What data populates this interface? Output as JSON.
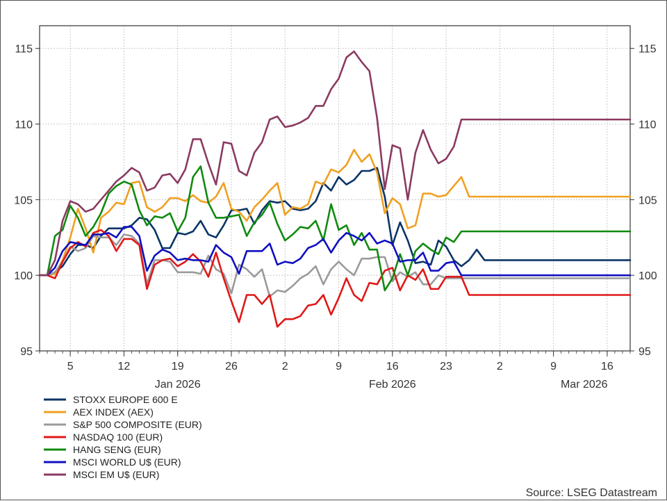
{
  "chart_data": {
    "type": "line",
    "title": "",
    "xlabel": "",
    "ylabel": "",
    "ylim": [
      95,
      116.5
    ],
    "xlim": [
      "2026-01-01",
      "2026-03-19"
    ],
    "y_ticks": [
      95,
      100,
      105,
      110,
      115
    ],
    "y_axis_sides": [
      "left",
      "right"
    ],
    "x_ticks": [
      {
        "date": "2026-01-05",
        "label": "5"
      },
      {
        "date": "2026-01-12",
        "label": "12"
      },
      {
        "date": "2026-01-19",
        "label": "19"
      },
      {
        "date": "2026-01-26",
        "label": "26"
      },
      {
        "date": "2026-02-02",
        "label": "2"
      },
      {
        "date": "2026-02-09",
        "label": "9"
      },
      {
        "date": "2026-02-16",
        "label": "16"
      },
      {
        "date": "2026-02-23",
        "label": "23"
      },
      {
        "date": "2026-03-02",
        "label": "2"
      },
      {
        "date": "2026-03-09",
        "label": "9"
      },
      {
        "date": "2026-03-16",
        "label": "16"
      }
    ],
    "month_labels": [
      {
        "date": "2026-01-19",
        "label": "Jan 2026"
      },
      {
        "date": "2026-02-16",
        "label": "Feb 2026"
      },
      {
        "date": "2026-03-13",
        "label": "Mar 2026"
      }
    ],
    "grid": true,
    "legend_position": "bottom-left",
    "source": "Source: LSEG Datastream",
    "x": [
      "2026-01-01",
      "2026-01-02",
      "2026-01-03",
      "2026-01-04",
      "2026-01-05",
      "2026-01-06",
      "2026-01-07",
      "2026-01-08",
      "2026-01-09",
      "2026-01-10",
      "2026-01-11",
      "2026-01-12",
      "2026-01-13",
      "2026-01-14",
      "2026-01-15",
      "2026-01-16",
      "2026-01-17",
      "2026-01-18",
      "2026-01-19",
      "2026-01-20",
      "2026-01-21",
      "2026-01-22",
      "2026-01-23",
      "2026-01-24",
      "2026-01-25",
      "2026-01-26",
      "2026-01-27",
      "2026-01-28",
      "2026-01-29",
      "2026-01-30",
      "2026-01-31",
      "2026-02-01",
      "2026-02-02",
      "2026-02-03",
      "2026-02-04",
      "2026-02-05",
      "2026-02-06",
      "2026-02-07",
      "2026-02-08",
      "2026-02-09",
      "2026-02-10",
      "2026-02-11",
      "2026-02-12",
      "2026-02-13",
      "2026-02-14",
      "2026-02-15",
      "2026-02-16",
      "2026-02-17",
      "2026-02-18",
      "2026-02-19",
      "2026-02-20",
      "2026-02-21",
      "2026-02-22",
      "2026-02-23",
      "2026-02-24",
      "2026-02-25",
      "2026-02-26",
      "2026-02-27",
      "2026-02-28",
      "2026-03-01",
      "2026-03-02",
      "2026-03-03",
      "2026-03-04",
      "2026-03-05",
      "2026-03-06",
      "2026-03-07",
      "2026-03-08",
      "2026-03-09",
      "2026-03-10",
      "2026-03-11",
      "2026-03-12",
      "2026-03-13",
      "2026-03-14",
      "2026-03-15",
      "2026-03-16",
      "2026-03-17",
      "2026-03-18",
      "2026-03-19"
    ],
    "series": [
      {
        "name": "STOXX EUROPE 600 E",
        "color": "#0a3466",
        "values": [
          100,
          100,
          100.2,
          100.6,
          101.4,
          102.0,
          102.0,
          101.8,
          102.6,
          103.1,
          103.1,
          103.1,
          103.3,
          103.8,
          103.7,
          103.0,
          101.8,
          101.8,
          102.8,
          102.7,
          102.9,
          103.6,
          102.7,
          102.5,
          103.3,
          104.3,
          104.3,
          104.4,
          103.4,
          104.3,
          104.9,
          104.8,
          104.9,
          104.4,
          104.3,
          104.4,
          104.9,
          106.1,
          105.6,
          106.5,
          106.0,
          106.3,
          106.9,
          106.9,
          107.1,
          105.2,
          102.0,
          103.5,
          102.3,
          100.8,
          100.9,
          100.7,
          102.3,
          101.9,
          101.0,
          100.6,
          101.0,
          101.7,
          101.0,
          101.0,
          101.0,
          101.0,
          101.0,
          101.0,
          101.0,
          101.0,
          101.0,
          101.0,
          101.0,
          101.0,
          101.0,
          101.0,
          101.0,
          101.0,
          101.0,
          101.0,
          101.0,
          101.0
        ]
      },
      {
        "name": "AEX INDEX (AEX)",
        "color": "#f0a020",
        "values": [
          100,
          100,
          100.1,
          101.0,
          102.5,
          104.4,
          103.1,
          101.5,
          103.8,
          104.2,
          104.8,
          104.7,
          106.1,
          106.2,
          104.5,
          104.2,
          104.5,
          105.1,
          105.1,
          104.9,
          105.3,
          104.9,
          104.8,
          105.2,
          106.1,
          104.4,
          104.2,
          103.6,
          104.5,
          105.0,
          105.6,
          106.1,
          104.0,
          104.5,
          104.4,
          104.7,
          106.2,
          106.0,
          107.0,
          106.8,
          107.3,
          108.3,
          107.5,
          108.0,
          106.8,
          104.1,
          105.1,
          104.7,
          103.1,
          103.3,
          105.4,
          105.4,
          105.2,
          105.3,
          105.9,
          106.5,
          105.2,
          105.2,
          105.2,
          105.2,
          105.2,
          105.2,
          105.2,
          105.2,
          105.2,
          105.2,
          105.2,
          105.2,
          105.2,
          105.2,
          105.2,
          105.2,
          105.2,
          105.2,
          105.2,
          105.2,
          105.2,
          105.2
        ]
      },
      {
        "name": "S&P 500 COMPOSITE (EUR)",
        "color": "#9a9a9a",
        "values": [
          100,
          100,
          100.2,
          100.9,
          101.9,
          101.6,
          101.8,
          102.6,
          102.5,
          102.5,
          102.0,
          102.7,
          102.6,
          102.1,
          99.4,
          101.0,
          101.0,
          100.9,
          100.2,
          100.2,
          100.2,
          100.1,
          101.3,
          100.4,
          100.1,
          98.8,
          100.7,
          100.4,
          99.9,
          100.4,
          98.6,
          99.0,
          98.9,
          99.3,
          99.8,
          100.1,
          100.6,
          99.4,
          100.4,
          100.9,
          100.4,
          100.0,
          101.1,
          101.1,
          101.2,
          101.2,
          99.6,
          100.2,
          99.9,
          100.2,
          99.4,
          99.4,
          100.0,
          99.8,
          99.8,
          99.8,
          99.8,
          99.8,
          99.8,
          99.8,
          99.8,
          99.8,
          99.8,
          99.8,
          99.8,
          99.8,
          99.8,
          99.8,
          99.8,
          99.8,
          99.8,
          99.8,
          99.8,
          99.8,
          99.8,
          99.8,
          99.8,
          99.8
        ]
      },
      {
        "name": "NASDAQ 100 (EUR)",
        "color": "#e01818",
        "values": [
          100,
          100,
          99.8,
          100.9,
          101.8,
          102.2,
          101.9,
          102.8,
          103.0,
          102.6,
          101.6,
          102.4,
          102.4,
          102.0,
          99.1,
          100.7,
          101.0,
          101.1,
          100.6,
          100.9,
          101.4,
          100.9,
          99.9,
          101.5,
          99.8,
          98.3,
          96.9,
          98.7,
          98.7,
          98.1,
          98.7,
          96.6,
          97.1,
          97.1,
          97.3,
          98.0,
          98.1,
          98.7,
          97.4,
          98.5,
          99.8,
          98.7,
          98.3,
          99.5,
          99.4,
          100.3,
          100.5,
          99.0,
          100.0,
          99.7,
          100.4,
          99.1,
          99.1,
          99.9,
          99.9,
          99.9,
          98.7,
          98.7,
          98.7,
          98.7,
          98.7,
          98.7,
          98.7,
          98.7,
          98.7,
          98.7,
          98.7,
          98.7,
          98.7,
          98.7,
          98.7,
          98.7,
          98.7,
          98.7,
          98.7,
          98.7,
          98.7,
          98.7
        ]
      },
      {
        "name": "HANG SENG (EUR)",
        "color": "#108a10",
        "values": [
          100,
          100,
          102.6,
          103.0,
          104.6,
          103.8,
          102.6,
          103.2,
          104.1,
          105.4,
          105.9,
          106.2,
          106.0,
          104.3,
          103.3,
          103.9,
          103.8,
          104.1,
          102.9,
          103.8,
          106.5,
          107.2,
          104.8,
          103.8,
          103.8,
          103.9,
          104.0,
          102.6,
          103.5,
          104.0,
          104.8,
          103.4,
          102.3,
          102.7,
          103.2,
          103.1,
          103.6,
          102.3,
          104.7,
          103.0,
          103.3,
          102.0,
          102.8,
          101.7,
          101.7,
          99.0,
          99.8,
          101.4,
          100.0,
          101.6,
          102.1,
          101.7,
          101.4,
          102.5,
          102.2,
          102.9,
          102.9,
          102.9,
          102.9,
          102.9,
          102.9,
          102.9,
          102.9,
          102.9,
          102.9,
          102.9,
          102.9,
          102.9,
          102.9,
          102.9,
          102.9,
          102.9,
          102.9,
          102.9,
          102.9,
          102.9,
          102.9,
          102.9
        ]
      },
      {
        "name": "MSCI WORLD U$ (EUR)",
        "color": "#1010c0",
        "values": [
          100,
          100,
          100.5,
          101.6,
          102.2,
          102.1,
          102.0,
          102.7,
          102.7,
          102.8,
          102.5,
          103.2,
          103.2,
          102.6,
          100.3,
          101.3,
          101.7,
          101.5,
          101.0,
          101.1,
          101.0,
          101.0,
          100.9,
          102.0,
          101.5,
          101.2,
          100.1,
          101.6,
          101.6,
          101.6,
          102.1,
          100.7,
          100.9,
          100.8,
          101.1,
          101.8,
          102.0,
          102.4,
          101.5,
          102.3,
          102.8,
          102.6,
          102.3,
          102.8,
          102.1,
          102.3,
          102.1,
          100.9,
          101.0,
          101.0,
          101.5,
          100.3,
          100.3,
          100.8,
          100.9,
          100.0,
          100.0,
          100.0,
          100.0,
          100.0,
          100.0,
          100.0,
          100.0,
          100.0,
          100.0,
          100.0,
          100.0,
          100.0,
          100.0,
          100.0,
          100.0,
          100.0,
          100.0,
          100.0,
          100.0,
          100.0,
          100.0,
          100.0
        ]
      },
      {
        "name": "MSCI EM U$ (EUR)",
        "color": "#8a3a60",
        "values": [
          100,
          100,
          101.0,
          103.6,
          104.9,
          104.7,
          104.2,
          104.4,
          105.0,
          105.6,
          106.2,
          106.6,
          107.1,
          106.8,
          105.6,
          105.8,
          106.6,
          106.7,
          106.1,
          107.0,
          109.0,
          109.0,
          107.4,
          106.0,
          108.8,
          108.7,
          106.9,
          106.6,
          108.1,
          108.8,
          110.3,
          110.5,
          109.8,
          109.9,
          110.1,
          110.4,
          111.2,
          111.2,
          112.3,
          113.0,
          114.4,
          114.8,
          114.1,
          113.5,
          110.4,
          105.7,
          108.6,
          108.4,
          105.0,
          108.1,
          109.6,
          108.3,
          107.4,
          107.7,
          108.5,
          110.3,
          110.3,
          110.3,
          110.3,
          110.3,
          110.3,
          110.3,
          110.3,
          110.3,
          110.3,
          110.3,
          110.3,
          110.3,
          110.3,
          110.3,
          110.3,
          110.3,
          110.3,
          110.3,
          110.3,
          110.3,
          110.3,
          110.3
        ]
      }
    ]
  }
}
